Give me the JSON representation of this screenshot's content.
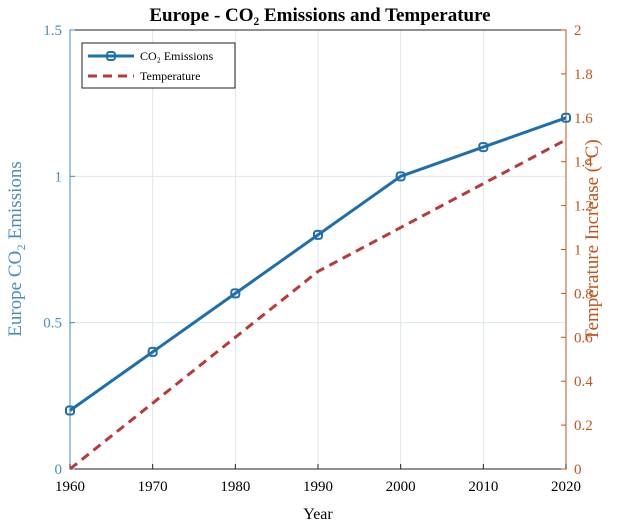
{
  "chart_data": {
    "type": "line",
    "title": "Europe - CO₂ Emissions and Temperature",
    "xlabel": "Year",
    "ylabel_left": "Europe CO₂ Emissions",
    "ylabel_right": "Temperature Increase (°C)",
    "x": [
      1960,
      1970,
      1980,
      1990,
      2000,
      2010,
      2020
    ],
    "xlim": [
      1960,
      2020
    ],
    "ylim_left": [
      0,
      1.5
    ],
    "ylim_right": [
      0,
      2
    ],
    "x_ticks": [
      1960,
      1970,
      1980,
      1990,
      2000,
      2010,
      2020
    ],
    "y_ticks_left": [
      0,
      0.5,
      1,
      1.5
    ],
    "y_ticks_left_labels": [
      "0",
      "0.5",
      "1",
      "1.5"
    ],
    "y_ticks_right": [
      0,
      0.2,
      0.4,
      0.6,
      0.8,
      1,
      1.2,
      1.4,
      1.6,
      1.8,
      2
    ],
    "y_ticks_right_labels": [
      "0",
      "0.2",
      "0.4",
      "0.6",
      "0.8",
      "1",
      "1.2",
      "1.4",
      "1.6",
      "1.8",
      "2"
    ],
    "grid": true,
    "legend_position": "top-left",
    "series": [
      {
        "name": "CO₂ Emissions",
        "axis": "left",
        "style": "solid-marker",
        "color": "#1f6fad",
        "values": [
          0.2,
          0.4,
          0.6,
          0.8,
          1.0,
          1.1,
          1.2
        ]
      },
      {
        "name": "Temperature",
        "axis": "right",
        "style": "dashed",
        "color": "#b83a3a",
        "values": [
          0.0,
          0.3,
          0.6,
          0.9,
          1.1,
          1.3,
          1.5
        ]
      }
    ],
    "colors": {
      "left_axis": "#4a8db8",
      "right_axis": "#c0561e",
      "grid": "#dde6ee",
      "frame": "#222222"
    }
  }
}
